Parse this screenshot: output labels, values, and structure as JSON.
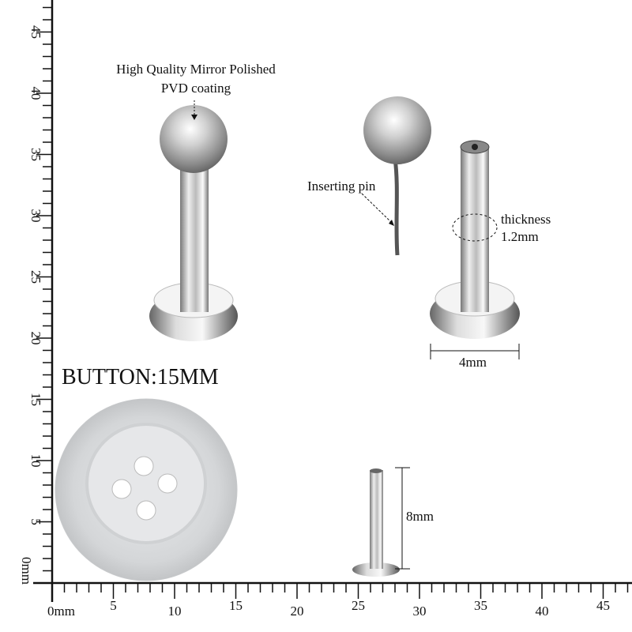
{
  "annotations": {
    "finish_line1": "High Quality Mirror Polished",
    "finish_line2": "PVD coating",
    "inserting_pin": "Inserting pin",
    "thickness_label": "thickness",
    "thickness_value": "1.2mm",
    "base_width": "4mm",
    "post_length": "8mm",
    "button_title": "BUTTON:15MM"
  },
  "ruler": {
    "unit": "mm",
    "x_labels": [
      "0mm",
      "5",
      "10",
      "15",
      "20",
      "25",
      "30",
      "35",
      "40",
      "45"
    ],
    "y_labels": [
      "0mm",
      "5",
      "10",
      "15",
      "20",
      "25",
      "30",
      "35",
      "40",
      "45"
    ],
    "max": 47
  },
  "colors": {
    "ink": "#111111",
    "metal_light": "#f2f2f2",
    "metal_dark": "#6e6e6e",
    "button": "#d8dadc"
  }
}
